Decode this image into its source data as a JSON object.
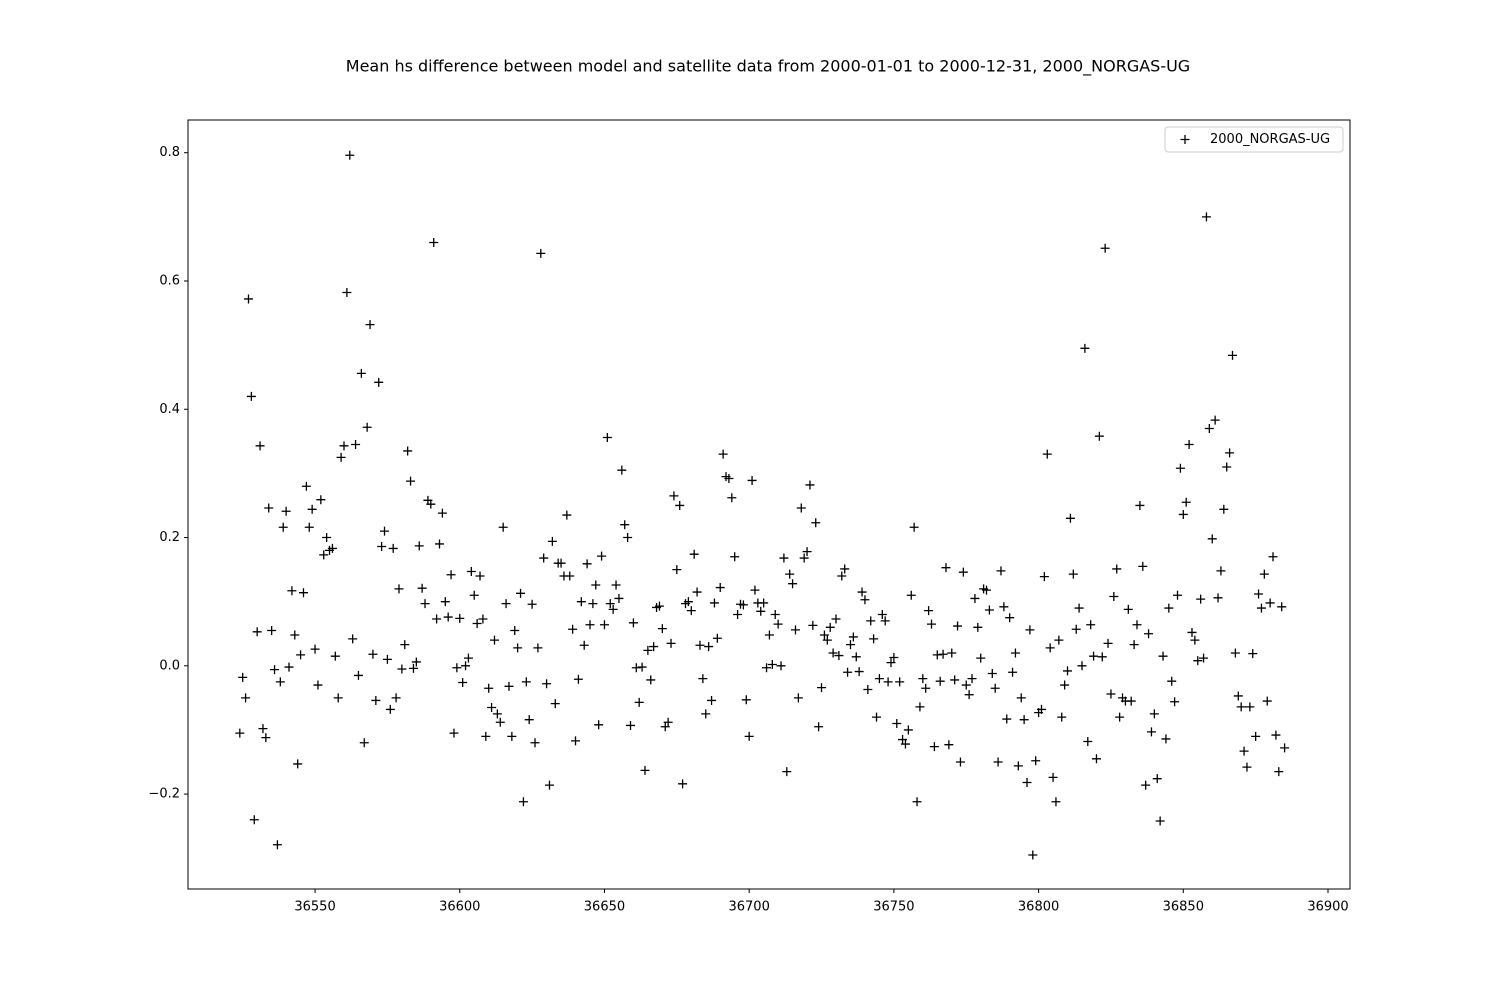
{
  "chart_data": {
    "type": "scatter",
    "title": "Mean hs difference between model and satellite data from 2000-01-01 to 2000-12-31, 2000_NORGAS-UG",
    "xlim": [
      36506.1,
      36907.6
    ],
    "ylim": [
      -0.348,
      0.851
    ],
    "xticks": [
      36550,
      36600,
      36650,
      36700,
      36750,
      36800,
      36850,
      36900
    ],
    "yticks": [
      {
        "value": -0.2,
        "label": "−0.2"
      },
      {
        "value": 0,
        "label": "0.0"
      },
      {
        "value": 0.2,
        "label": "0.2"
      },
      {
        "value": 0.4,
        "label": "0.4"
      },
      {
        "value": 0.6,
        "label": "0.6"
      },
      {
        "value": 0.8,
        "label": "0.8"
      }
    ],
    "grid": false,
    "legend": "upper right",
    "marker": "+",
    "x": [
      36524,
      36525,
      36526,
      36527,
      36528,
      36529,
      36530,
      36531,
      36532,
      36533,
      36534,
      36535,
      36536,
      36537,
      36538,
      36539,
      36540,
      36541,
      36542,
      36543,
      36544,
      36545,
      36546,
      36547,
      36548,
      36549,
      36550,
      36551,
      36552,
      36553,
      36554,
      36555,
      36556,
      36557,
      36558,
      36559,
      36560,
      36561,
      36562,
      36563,
      36564,
      36565,
      36566,
      36567,
      36568,
      36569,
      36570,
      36571,
      36572,
      36573,
      36574,
      36575,
      36576,
      36577,
      36578,
      36579,
      36580,
      36581,
      36582,
      36583,
      36584,
      36585,
      36586,
      36587,
      36588,
      36589,
      36590,
      36591,
      36592,
      36593,
      36594,
      36595,
      36596,
      36597,
      36598,
      36599,
      36600,
      36601,
      36602,
      36603,
      36604,
      36605,
      36606,
      36607,
      36608,
      36609,
      36610,
      36611,
      36612,
      36613,
      36614,
      36615,
      36616,
      36617,
      36618,
      36619,
      36620,
      36621,
      36622,
      36623,
      36624,
      36625,
      36626,
      36627,
      36628,
      36629,
      36630,
      36631,
      36632,
      36633,
      36634,
      36635,
      36636,
      36637,
      36638,
      36639,
      36640,
      36641,
      36642,
      36643,
      36644,
      36645,
      36646,
      36647,
      36648,
      36649,
      36650,
      36651,
      36652,
      36653,
      36654,
      36655,
      36656,
      36657,
      36658,
      36659,
      36660,
      36661,
      36662,
      36663,
      36664,
      36665,
      36666,
      36667,
      36668,
      36669,
      36670,
      36671,
      36672,
      36673,
      36674,
      36675,
      36676,
      36677,
      36678,
      36679,
      36680,
      36681,
      36682,
      36683,
      36684,
      36685,
      36686,
      36687,
      36688,
      36689,
      36690,
      36691,
      36692,
      36693,
      36694,
      36695,
      36696,
      36697,
      36698,
      36699,
      36700,
      36701,
      36702,
      36703,
      36704,
      36705,
      36706,
      36707,
      36708,
      36709,
      36710,
      36711,
      36712,
      36713,
      36714,
      36715,
      36716,
      36717,
      36718,
      36719,
      36720,
      36721,
      36722,
      36723,
      36724,
      36725,
      36726,
      36727,
      36728,
      36729,
      36730,
      36731,
      36732,
      36733,
      36734,
      36735,
      36736,
      36737,
      36738,
      36739,
      36740,
      36741,
      36742,
      36743,
      36744,
      36745,
      36746,
      36747,
      36748,
      36749,
      36750,
      36751,
      36752,
      36753,
      36754,
      36755,
      36756,
      36757,
      36758,
      36759,
      36760,
      36761,
      36762,
      36763,
      36764,
      36765,
      36766,
      36767,
      36768,
      36769,
      36770,
      36771,
      36772,
      36773,
      36774,
      36775,
      36776,
      36777,
      36778,
      36779,
      36780,
      36781,
      36782,
      36783,
      36784,
      36785,
      36786,
      36787,
      36788,
      36789,
      36790,
      36791,
      36792,
      36793,
      36794,
      36795,
      36796,
      36797,
      36798,
      36799,
      36800,
      36801,
      36802,
      36803,
      36804,
      36805,
      36806,
      36807,
      36808,
      36809,
      36810,
      36811,
      36812,
      36813,
      36814,
      36815,
      36816,
      36817,
      36818,
      36819,
      36820,
      36821,
      36822,
      36823,
      36824,
      36825,
      36826,
      36827,
      36828,
      36829,
      36830,
      36831,
      36832,
      36833,
      36834,
      36835,
      36836,
      36837,
      36838,
      36839,
      36840,
      36841,
      36842,
      36843,
      36844,
      36845,
      36846,
      36847,
      36848,
      36849,
      36850,
      36851,
      36852,
      36853,
      36854,
      36855,
      36856,
      36857,
      36858,
      36859,
      36860,
      36861,
      36862,
      36863,
      36864,
      36865,
      36866,
      36867,
      36868,
      36869,
      36870,
      36871,
      36872,
      36873,
      36874,
      36875,
      36876,
      36877,
      36878,
      36879,
      36880,
      36881,
      36882,
      36883,
      36884,
      36885
    ],
    "series": [
      {
        "name": "2000_NORGAS-UG",
        "color": "#000000",
        "values": [
          -0.105,
          -0.018,
          -0.05,
          0.572,
          0.42,
          -0.24,
          0.053,
          0.343,
          -0.098,
          -0.112,
          0.246,
          0.055,
          -0.006,
          -0.279,
          -0.025,
          0.216,
          0.241,
          -0.002,
          0.117,
          0.048,
          -0.153,
          0.017,
          0.114,
          0.28,
          0.216,
          0.244,
          0.026,
          -0.03,
          0.259,
          0.173,
          0.2,
          0.18,
          0.183,
          0.015,
          -0.05,
          0.325,
          0.343,
          0.582,
          0.796,
          0.042,
          0.345,
          -0.015,
          0.456,
          -0.12,
          0.372,
          0.532,
          0.018,
          -0.054,
          0.442,
          0.186,
          0.21,
          0.01,
          -0.068,
          0.183,
          -0.05,
          0.12,
          -0.005,
          0.033,
          0.335,
          0.288,
          -0.004,
          0.006,
          0.187,
          0.121,
          0.097,
          0.258,
          0.252,
          0.66,
          0.073,
          0.19,
          0.238,
          0.1,
          0.076,
          0.142,
          -0.105,
          -0.003,
          0.074,
          -0.026,
          0.0,
          0.012,
          0.147,
          0.11,
          0.066,
          0.14,
          0.073,
          -0.11,
          -0.035,
          -0.065,
          0.04,
          -0.075,
          -0.088,
          0.216,
          0.097,
          -0.032,
          -0.11,
          0.055,
          0.028,
          0.113,
          -0.212,
          -0.025,
          -0.084,
          0.096,
          -0.12,
          0.028,
          0.643,
          0.168,
          -0.028,
          -0.186,
          0.194,
          -0.059,
          0.16,
          0.16,
          0.14,
          0.235,
          0.14,
          0.057,
          -0.117,
          -0.021,
          0.1,
          0.032,
          0.159,
          0.064,
          0.097,
          0.126,
          -0.092,
          0.171,
          0.064,
          0.356,
          0.097,
          0.088,
          0.126,
          0.105,
          0.305,
          0.22,
          0.2,
          -0.093,
          0.067,
          -0.003,
          -0.057,
          -0.002,
          -0.163,
          0.024,
          -0.022,
          0.03,
          0.091,
          0.093,
          0.058,
          -0.095,
          -0.088,
          0.035,
          0.265,
          0.15,
          0.25,
          -0.184,
          0.097,
          0.1,
          0.086,
          0.174,
          0.115,
          0.032,
          -0.02,
          -0.075,
          0.03,
          -0.054,
          0.098,
          0.043,
          0.122,
          0.33,
          0.295,
          0.292,
          0.262,
          0.17,
          0.08,
          0.096,
          0.095,
          -0.053,
          -0.11,
          0.289,
          0.118,
          0.098,
          0.085,
          0.098,
          -0.003,
          0.048,
          0.002,
          0.08,
          0.065,
          0.0,
          0.168,
          -0.165,
          0.143,
          0.128,
          0.056,
          -0.05,
          0.246,
          0.168,
          0.178,
          0.282,
          0.063,
          0.223,
          -0.095,
          -0.034,
          0.048,
          0.04,
          0.06,
          0.02,
          0.073,
          0.016,
          0.14,
          0.151,
          -0.01,
          0.033,
          0.045,
          0.014,
          -0.009,
          0.115,
          0.103,
          -0.037,
          0.07,
          0.042,
          -0.08,
          -0.02,
          0.08,
          0.07,
          -0.025,
          0.005,
          0.013,
          -0.09,
          -0.025,
          -0.115,
          -0.122,
          -0.1,
          0.11,
          0.216,
          -0.212,
          -0.064,
          -0.02,
          -0.035,
          0.086,
          0.065,
          -0.126,
          0.017,
          -0.024,
          0.018,
          0.153,
          -0.123,
          0.02,
          -0.022,
          0.062,
          -0.15,
          0.146,
          -0.03,
          -0.045,
          -0.02,
          0.105,
          0.06,
          0.012,
          0.12,
          0.118,
          0.087,
          -0.012,
          -0.035,
          -0.15,
          0.148,
          0.092,
          -0.083,
          0.075,
          -0.01,
          0.02,
          -0.156,
          -0.05,
          -0.084,
          -0.182,
          0.056,
          -0.295,
          -0.148,
          -0.073,
          -0.068,
          0.139,
          0.33,
          0.028,
          -0.174,
          -0.212,
          0.04,
          -0.08,
          -0.03,
          -0.008,
          0.23,
          0.143,
          0.057,
          0.09,
          0.0,
          0.495,
          -0.118,
          0.064,
          0.015,
          -0.145,
          0.358,
          0.014,
          0.651,
          0.035,
          -0.044,
          0.108,
          0.151,
          -0.08,
          -0.05,
          -0.055,
          0.088,
          -0.055,
          0.033,
          0.064,
          0.25,
          0.155,
          -0.186,
          0.05,
          -0.103,
          -0.075,
          -0.176,
          -0.242,
          0.015,
          -0.114,
          0.09,
          -0.024,
          -0.056,
          0.11,
          0.308,
          0.236,
          0.255,
          0.345,
          0.052,
          0.04,
          0.008,
          0.104,
          0.012,
          0.7,
          0.37,
          0.198,
          0.383,
          0.106,
          0.148,
          0.244,
          0.31,
          0.332,
          0.484,
          0.02,
          -0.047,
          -0.064,
          -0.133,
          -0.158,
          -0.064,
          0.019,
          -0.11,
          0.112,
          0.09,
          0.143,
          -0.055,
          0.098,
          0.17,
          -0.108,
          -0.165,
          0.092,
          -0.128
        ]
      }
    ]
  }
}
